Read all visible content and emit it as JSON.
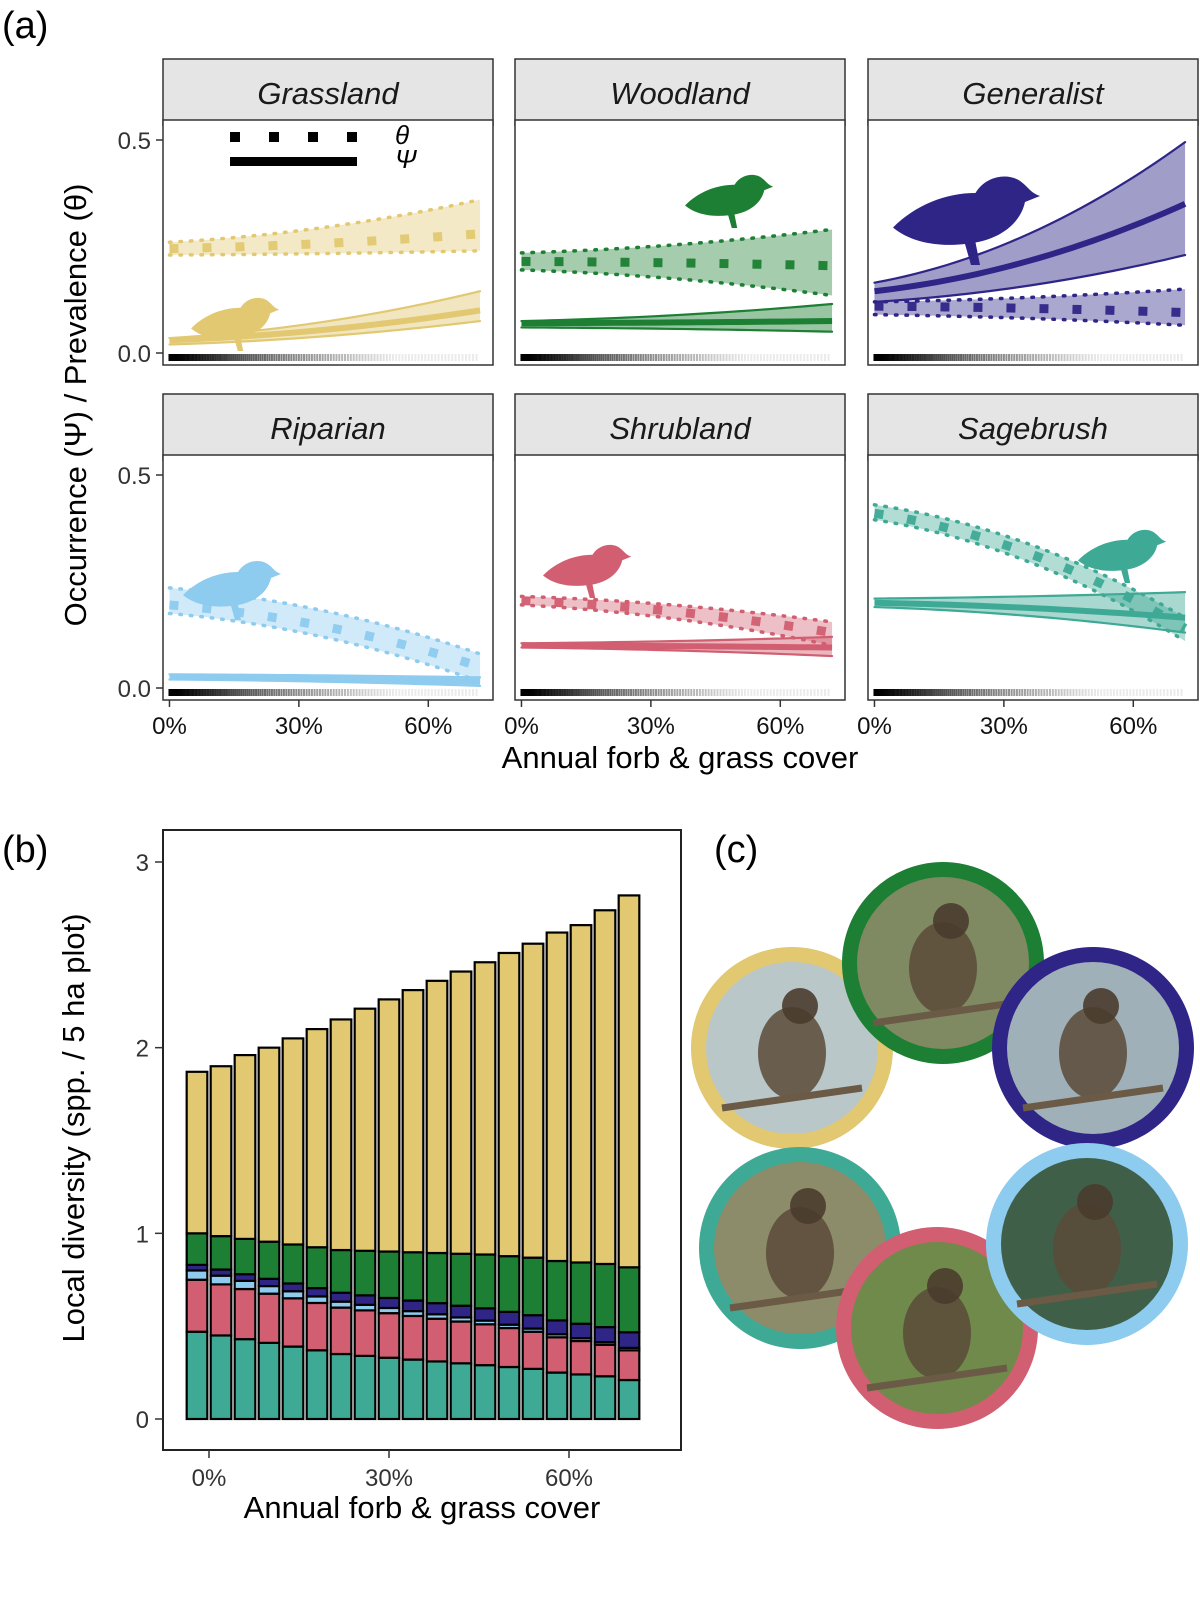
{
  "panel_labels": {
    "a": "(a)",
    "b": "(b)",
    "c": "(c)"
  },
  "colors": {
    "grassland": "#E1C871",
    "woodland": "#1C7F33",
    "generalist": "#2E2587",
    "riparian": "#8DCBEF",
    "shrubland": "#D15F71",
    "sagebrush": "#3EA995",
    "strip": "#E5E5E5"
  },
  "chart_data": [
    {
      "type": "line",
      "panel": "a",
      "xlabel": "Annual forb & grass cover",
      "ylabel": "Occurrence (Ψ) / Prevalence (θ)",
      "x_range": [
        0,
        72
      ],
      "ylim": [
        0,
        0.5
      ],
      "x_ticks": [
        {
          "v": 0,
          "label": "0%"
        },
        {
          "v": 30,
          "label": "30%"
        },
        {
          "v": 60,
          "label": "60%"
        }
      ],
      "y_ticks": [
        {
          "v": 0,
          "label": "0.0"
        },
        {
          "v": 0.5,
          "label": "0.5"
        }
      ],
      "legend": {
        "theta": "θ",
        "psi": "Ψ",
        "position": "top-left"
      },
      "facets": [
        {
          "key": "grassland",
          "name": "Grassland",
          "theta": {
            "mid": [
              0.245,
              0.28
            ],
            "lo": [
              0.23,
              0.24
            ],
            "hi": [
              0.26,
              0.36
            ]
          },
          "psi": {
            "mid": [
              0.03,
              0.1
            ],
            "lo": [
              0.02,
              0.075
            ],
            "hi": [
              0.035,
              0.145
            ]
          }
        },
        {
          "key": "woodland",
          "name": "Woodland",
          "theta": {
            "mid": [
              0.215,
              0.205
            ],
            "lo": [
              0.195,
              0.135
            ],
            "hi": [
              0.235,
              0.29
            ]
          },
          "psi": {
            "mid": [
              0.07,
              0.075
            ],
            "lo": [
              0.06,
              0.05
            ],
            "hi": [
              0.075,
              0.115
            ]
          }
        },
        {
          "key": "generalist",
          "name": "Generalist",
          "theta": {
            "mid": [
              0.11,
              0.095
            ],
            "lo": [
              0.09,
              0.065
            ],
            "hi": [
              0.12,
              0.15
            ]
          },
          "psi": {
            "mid": [
              0.145,
              0.35
            ],
            "lo": [
              0.12,
              0.23
            ],
            "hi": [
              0.165,
              0.495
            ]
          }
        },
        {
          "key": "riparian",
          "name": "Riparian",
          "theta": {
            "mid": [
              0.195,
              0.05
            ],
            "lo": [
              0.175,
              0.015
            ],
            "hi": [
              0.235,
              0.08
            ]
          },
          "psi": {
            "mid": [
              0.025,
              0.015
            ],
            "lo": [
              0.02,
              0.005
            ],
            "hi": [
              0.032,
              0.025
            ]
          }
        },
        {
          "key": "shrubland",
          "name": "Shrubland",
          "theta": {
            "mid": [
              0.205,
              0.13
            ],
            "lo": [
              0.195,
              0.1
            ],
            "hi": [
              0.215,
              0.155
            ]
          },
          "psi": {
            "mid": [
              0.1,
              0.095
            ],
            "lo": [
              0.095,
              0.075
            ],
            "hi": [
              0.105,
              0.12
            ]
          }
        },
        {
          "key": "sagebrush",
          "name": "Sagebrush",
          "theta": {
            "mid": [
              0.41,
              0.14
            ],
            "lo": [
              0.395,
              0.11
            ],
            "hi": [
              0.43,
              0.165
            ]
          },
          "psi": {
            "mid": [
              0.2,
              0.165
            ],
            "lo": [
              0.19,
              0.13
            ],
            "hi": [
              0.21,
              0.225
            ]
          }
        }
      ]
    },
    {
      "type": "bar",
      "panel": "b",
      "stacked": true,
      "xlabel": "Annual forb & grass cover",
      "ylabel": "Local diversity (spp. / 5 ha plot)",
      "ylim": [
        0,
        3
      ],
      "y_ticks": [
        {
          "v": 0,
          "label": "0"
        },
        {
          "v": 1,
          "label": "1"
        },
        {
          "v": 2,
          "label": "2"
        },
        {
          "v": 3,
          "label": "3"
        }
      ],
      "x_ticks": [
        {
          "v": 0,
          "label": "0%"
        },
        {
          "v": 30,
          "label": "30%"
        },
        {
          "v": 60,
          "label": "60%"
        }
      ],
      "x": [
        -2,
        2,
        6,
        10,
        14,
        18,
        22,
        26,
        30,
        34,
        38,
        42,
        46,
        50,
        54,
        58,
        62,
        66,
        70
      ],
      "series": [
        {
          "key": "sagebrush",
          "values": [
            0.47,
            0.45,
            0.43,
            0.41,
            0.39,
            0.37,
            0.35,
            0.34,
            0.33,
            0.32,
            0.31,
            0.3,
            0.29,
            0.28,
            0.27,
            0.25,
            0.24,
            0.23,
            0.21
          ]
        },
        {
          "key": "shrubland",
          "values": [
            0.28,
            0.275,
            0.27,
            0.265,
            0.26,
            0.255,
            0.25,
            0.245,
            0.24,
            0.235,
            0.23,
            0.225,
            0.22,
            0.21,
            0.2,
            0.19,
            0.18,
            0.17,
            0.16
          ]
        },
        {
          "key": "riparian",
          "values": [
            0.05,
            0.047,
            0.044,
            0.041,
            0.038,
            0.035,
            0.032,
            0.03,
            0.028,
            0.026,
            0.024,
            0.022,
            0.02,
            0.018,
            0.017,
            0.016,
            0.015,
            0.014,
            0.013
          ]
        },
        {
          "key": "generalist",
          "values": [
            0.03,
            0.033,
            0.036,
            0.039,
            0.042,
            0.045,
            0.048,
            0.051,
            0.054,
            0.057,
            0.06,
            0.063,
            0.066,
            0.069,
            0.072,
            0.075,
            0.078,
            0.081,
            0.084
          ]
        },
        {
          "key": "woodland",
          "values": [
            0.17,
            0.18,
            0.19,
            0.2,
            0.21,
            0.22,
            0.23,
            0.24,
            0.25,
            0.26,
            0.27,
            0.28,
            0.29,
            0.3,
            0.31,
            0.32,
            0.33,
            0.34,
            0.35
          ]
        },
        {
          "key": "grassland",
          "values": [
            0.87,
            0.915,
            0.99,
            1.045,
            1.11,
            1.175,
            1.242,
            1.304,
            1.358,
            1.412,
            1.466,
            1.52,
            1.574,
            1.633,
            1.691,
            1.769,
            1.817,
            1.905,
            2.003
          ]
        }
      ]
    }
  ],
  "photos": [
    {
      "key": "grassland",
      "subject": "meadowlark"
    },
    {
      "key": "woodland",
      "subject": "wren"
    },
    {
      "key": "generalist",
      "subject": "magpie"
    },
    {
      "key": "sagebrush",
      "subject": "sparrow"
    },
    {
      "key": "shrubland",
      "subject": "black-throated-sparrow"
    },
    {
      "key": "riparian",
      "subject": "chat"
    }
  ]
}
